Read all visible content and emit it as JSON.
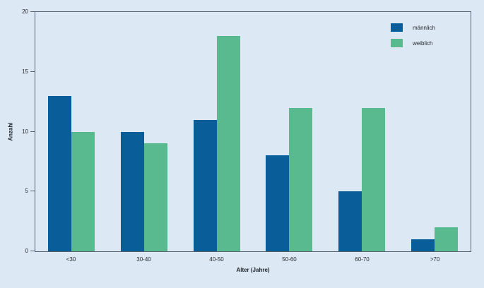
{
  "chart_data": {
    "type": "bar",
    "title": "",
    "categories": [
      "<30",
      "30-40",
      "40-50",
      "50-60",
      "60-70",
      ">70"
    ],
    "series": [
      {
        "name": "männlich",
        "color": "#095e99",
        "values": [
          13,
          10,
          11,
          8,
          5,
          1
        ]
      },
      {
        "name": "weiblich",
        "color": "#59ba90",
        "values": [
          10,
          9,
          18,
          12,
          12,
          2
        ]
      }
    ],
    "xlabel": "Alter (Jahre)",
    "ylabel": "Anzahl",
    "ylim": [
      0,
      20
    ],
    "yticks": [
      0,
      5,
      10,
      15,
      20
    ],
    "grid": false,
    "legend_position": "top-right-inside"
  },
  "colors": {
    "background": "#dce9f5",
    "axis": "#556070",
    "text": "#1f2328"
  }
}
